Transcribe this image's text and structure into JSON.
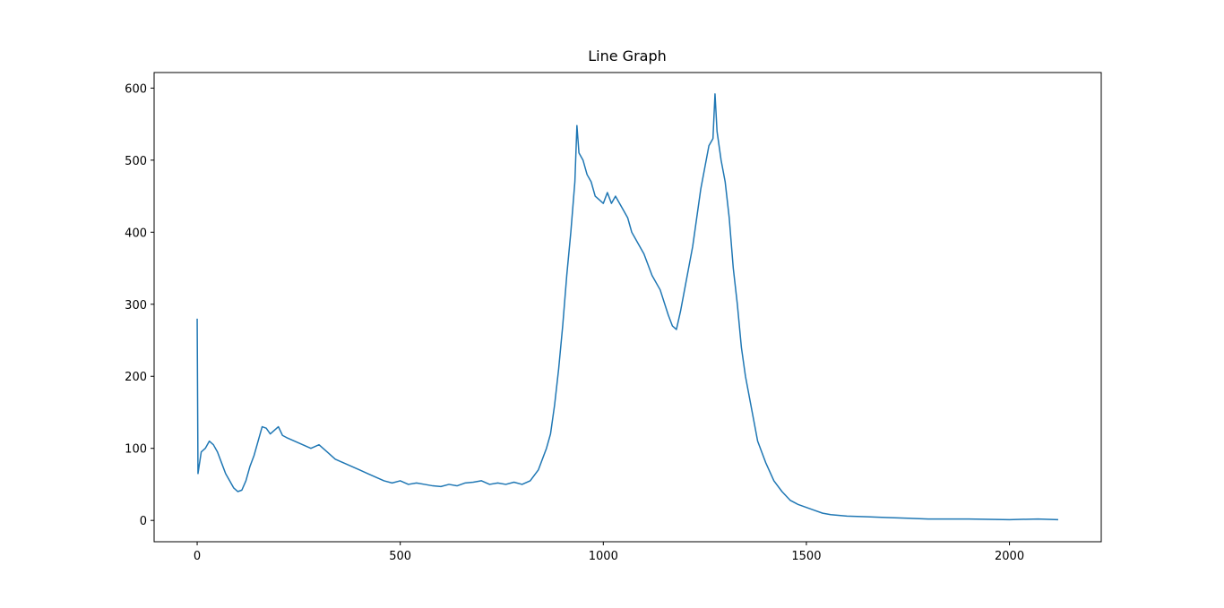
{
  "chart_data": {
    "type": "line",
    "title": "Line Graph",
    "x": [
      0,
      2,
      10,
      20,
      30,
      40,
      50,
      60,
      70,
      80,
      90,
      100,
      110,
      120,
      130,
      140,
      150,
      160,
      170,
      180,
      190,
      200,
      210,
      220,
      240,
      260,
      280,
      300,
      320,
      340,
      360,
      380,
      400,
      420,
      440,
      460,
      480,
      500,
      520,
      540,
      560,
      580,
      600,
      620,
      640,
      660,
      680,
      700,
      720,
      740,
      760,
      780,
      800,
      820,
      840,
      860,
      870,
      880,
      890,
      900,
      910,
      920,
      930,
      935,
      940,
      950,
      960,
      970,
      980,
      990,
      1000,
      1010,
      1020,
      1030,
      1040,
      1050,
      1060,
      1070,
      1080,
      1100,
      1120,
      1140,
      1160,
      1170,
      1180,
      1190,
      1200,
      1210,
      1220,
      1230,
      1240,
      1250,
      1260,
      1270,
      1275,
      1280,
      1290,
      1300,
      1310,
      1320,
      1330,
      1340,
      1350,
      1360,
      1370,
      1380,
      1400,
      1420,
      1440,
      1460,
      1480,
      1500,
      1520,
      1540,
      1560,
      1600,
      1650,
      1700,
      1750,
      1800,
      1900,
      2000,
      2070,
      2120
    ],
    "series": [
      {
        "color": "#1f77b4",
        "values": [
          280,
          65,
          95,
          100,
          110,
          105,
          95,
          80,
          65,
          55,
          45,
          40,
          42,
          55,
          75,
          90,
          110,
          130,
          128,
          120,
          125,
          130,
          118,
          115,
          110,
          105,
          100,
          105,
          95,
          85,
          80,
          75,
          70,
          65,
          60,
          55,
          52,
          55,
          50,
          52,
          50,
          48,
          47,
          50,
          48,
          52,
          53,
          55,
          50,
          52,
          50,
          53,
          50,
          55,
          70,
          100,
          120,
          160,
          210,
          270,
          340,
          400,
          470,
          548,
          510,
          500,
          480,
          470,
          450,
          445,
          440,
          455,
          440,
          450,
          440,
          430,
          420,
          400,
          390,
          370,
          340,
          320,
          285,
          270,
          265,
          290,
          320,
          350,
          380,
          420,
          460,
          490,
          520,
          530,
          592,
          540,
          500,
          470,
          420,
          350,
          300,
          240,
          200,
          170,
          140,
          110,
          80,
          55,
          40,
          28,
          22,
          18,
          14,
          10,
          8,
          6,
          5,
          4,
          3,
          2,
          2,
          1,
          2,
          1
        ]
      }
    ],
    "xlim": [
      -106,
      2226
    ],
    "ylim": [
      -29.6,
      621.6
    ],
    "xticks": [
      0,
      500,
      1000,
      1500,
      2000
    ],
    "yticks": [
      0,
      100,
      200,
      300,
      400,
      500,
      600
    ]
  }
}
